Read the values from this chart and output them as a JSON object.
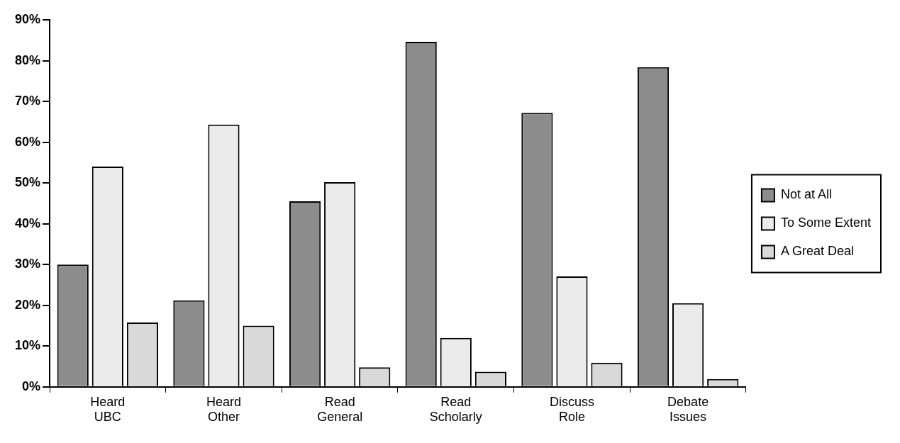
{
  "chart_data": {
    "type": "bar",
    "categories": [
      "Heard UBC",
      "Heard Other",
      "Read General",
      "Read Scholarly",
      "Discuss Role",
      "Debate Issues"
    ],
    "series": [
      {
        "name": "Not at All",
        "color": "#8c8c8c",
        "values": [
          30,
          21.2,
          45.5,
          84.6,
          67.2,
          78.4
        ]
      },
      {
        "name": "To Some Extent",
        "color": "#ebebeb",
        "values": [
          54,
          64.3,
          50.2,
          12,
          27.1,
          20.5
        ]
      },
      {
        "name": "A Great Deal",
        "color": "#d9d9d9",
        "values": [
          15.8,
          15,
          4.8,
          3.7,
          5.9,
          1.9
        ]
      }
    ],
    "ylim": [
      0,
      90
    ],
    "yticks": [
      {
        "value": 0,
        "label": "0%"
      },
      {
        "value": 10,
        "label": "10%"
      },
      {
        "value": 20,
        "label": "20%"
      },
      {
        "value": 30,
        "label": "30%"
      },
      {
        "value": 40,
        "label": "40%"
      },
      {
        "value": 50,
        "label": "50%"
      },
      {
        "value": 60,
        "label": "60%"
      },
      {
        "value": 70,
        "label": "70%"
      },
      {
        "value": 80,
        "label": "80%"
      },
      {
        "value": 90,
        "label": "90%"
      }
    ],
    "grid": false,
    "legend": "right"
  }
}
